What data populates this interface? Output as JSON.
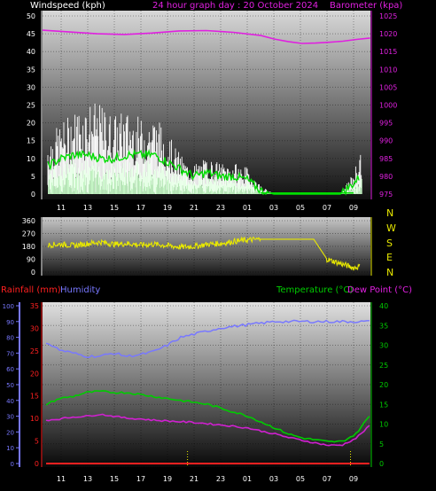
{
  "header": {
    "left_label": "Windspeed (kph)",
    "center_label": "24 hour graph day : 20 October 2024",
    "right_label": "Barometer (kpa)"
  },
  "bottom_header": {
    "rain_label": "Rainfall (mm)",
    "humidity_label": "Humidity",
    "temp_label": "Temperature (°C)",
    "dew_label": "Dew Point (°C)"
  },
  "colors": {
    "wind": "#ffffff",
    "wind_avg": "#00dd00",
    "wind_low": "#ccffcc",
    "barometer": "#e020e0",
    "direction": "#e8e800",
    "temperature": "#00cc00",
    "dewpoint": "#d020d0",
    "humidity": "#7878ff",
    "rainfall": "#ff2020"
  },
  "x_ticks": [
    "11",
    "13",
    "15",
    "17",
    "19",
    "21",
    "23",
    "01",
    "03",
    "05",
    "07",
    "09"
  ],
  "chart_data": [
    {
      "type": "line",
      "name": "wind-barometer",
      "title": "24 hour graph day : 20 October 2024",
      "ylabel": "Windspeed (kph)",
      "y2label": "Barometer (kpa)",
      "ylim": [
        0,
        50
      ],
      "y2lim": [
        975,
        1025
      ],
      "yticks": [
        0,
        5,
        10,
        15,
        20,
        25,
        30,
        35,
        40,
        45,
        50
      ],
      "y2ticks": [
        975,
        980,
        985,
        990,
        995,
        1000,
        1005,
        1010,
        1015,
        1020,
        1025
      ],
      "grid": true,
      "series": [
        {
          "name": "Windspeed (kph)",
          "x": [
            0,
            1,
            2,
            3,
            4,
            5,
            6,
            7,
            8,
            9,
            9.5,
            10,
            10.5,
            11,
            12,
            13,
            14,
            15,
            16,
            17,
            18,
            19,
            20,
            21,
            22,
            23,
            23.5
          ],
          "y": [
            13,
            16,
            19,
            21,
            20,
            18,
            19,
            17,
            18,
            14,
            11,
            9,
            7,
            7,
            8,
            7,
            7,
            6,
            2,
            0,
            0,
            0,
            0,
            0,
            0,
            5,
            10
          ]
        },
        {
          "name": "Average wind",
          "x": [
            0,
            1,
            2,
            3,
            4,
            5,
            6,
            7,
            8,
            9,
            10,
            11,
            12,
            13,
            14,
            15,
            16,
            17,
            18,
            19,
            20,
            21,
            22,
            23,
            23.5
          ],
          "y": [
            8,
            10,
            11,
            11,
            10,
            10,
            11,
            11,
            11,
            9,
            7,
            5,
            6,
            5,
            5,
            4,
            1,
            0,
            0,
            0,
            0,
            0,
            0,
            3,
            5
          ]
        },
        {
          "name": "Barometer (kpa)",
          "axis": "right",
          "x": [
            0,
            2,
            4,
            6,
            8,
            10,
            12,
            14,
            16,
            17,
            18,
            19,
            20,
            21,
            22,
            23,
            24
          ],
          "y": [
            1021.0,
            1020.5,
            1020.0,
            1019.8,
            1020.2,
            1020.8,
            1020.9,
            1020.4,
            1019.5,
            1018.5,
            1017.8,
            1017.3,
            1017.4,
            1017.6,
            1017.9,
            1018.4,
            1018.8
          ]
        }
      ]
    },
    {
      "type": "line",
      "name": "wind-direction",
      "ylim": [
        0,
        360
      ],
      "yticks": [
        0,
        90,
        180,
        270,
        360
      ],
      "y2ticks": [
        "N",
        "W",
        "S",
        "E",
        "N"
      ],
      "grid": true,
      "series": [
        {
          "name": "Wind direction",
          "x": [
            0,
            1,
            2,
            3,
            4,
            5,
            6,
            7,
            8,
            9,
            10,
            11,
            12,
            13,
            14,
            15,
            16,
            17,
            18,
            19,
            20,
            21,
            22,
            23,
            23.5
          ],
          "y": [
            190,
            195,
            185,
            200,
            210,
            195,
            200,
            190,
            195,
            185,
            175,
            180,
            195,
            200,
            215,
            225,
            230,
            230,
            230,
            230,
            230,
            90,
            60,
            30,
            40
          ]
        }
      ]
    },
    {
      "type": "line",
      "name": "temperature-humidity",
      "ylabel": "Rainfall (mm)",
      "y2label": "Temperature (°C)",
      "ylim": [
        0,
        100
      ],
      "rain_ylim": [
        0,
        35
      ],
      "y2lim": [
        0,
        40
      ],
      "yticks": [
        0,
        10,
        20,
        30,
        40,
        50,
        60,
        70,
        80,
        90,
        100
      ],
      "rain_yticks": [
        0,
        5,
        10,
        15,
        20,
        25,
        30,
        35
      ],
      "y2ticks": [
        0,
        5,
        10,
        15,
        20,
        25,
        30,
        35,
        40
      ],
      "grid": true,
      "series": [
        {
          "name": "Temperature (°C)",
          "axis": "right",
          "x": [
            0,
            1,
            2,
            3,
            4,
            5,
            6,
            7,
            8,
            9,
            10,
            11,
            12,
            13,
            14,
            15,
            16,
            17,
            18,
            19,
            20,
            21,
            22,
            23,
            24
          ],
          "y": [
            15,
            16.5,
            17,
            18,
            18.3,
            18,
            18,
            17.5,
            17,
            16.5,
            16,
            15.5,
            15,
            14,
            13,
            12,
            10.5,
            9,
            7.5,
            6.5,
            6,
            5.5,
            5.6,
            7.5,
            12
          ]
        },
        {
          "name": "Dew Point (°C)",
          "axis": "right",
          "x": [
            0,
            1,
            2,
            3,
            4,
            5,
            6,
            7,
            8,
            9,
            10,
            11,
            12,
            13,
            14,
            15,
            16,
            17,
            18,
            19,
            20,
            21,
            22,
            23,
            24
          ],
          "y": [
            11,
            11.3,
            11.8,
            12,
            12.5,
            12,
            11.5,
            11.3,
            11,
            10.8,
            10.6,
            10.4,
            10.1,
            9.8,
            9.4,
            9,
            8.2,
            7.5,
            6.6,
            5.9,
            5.2,
            4.6,
            4.7,
            6.4,
            9.5
          ]
        },
        {
          "name": "Humidity",
          "axis": "left",
          "x": [
            0,
            1,
            2,
            3,
            4,
            5,
            6,
            7,
            8,
            9,
            10,
            11,
            12,
            13,
            14,
            15,
            16,
            17,
            18,
            19,
            20,
            21,
            22,
            23,
            24
          ],
          "y": [
            77,
            72,
            70,
            68,
            68,
            70,
            68,
            69,
            71,
            75,
            80,
            82,
            84,
            86,
            87,
            88,
            89,
            90,
            90,
            90,
            90,
            90,
            90,
            90,
            90
          ]
        },
        {
          "name": "Rainfall (mm)",
          "axis": "rain",
          "x": [
            0,
            24
          ],
          "y": [
            0,
            0
          ]
        }
      ]
    }
  ]
}
